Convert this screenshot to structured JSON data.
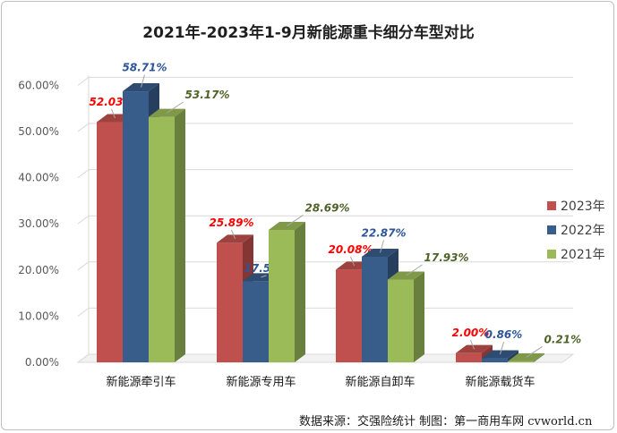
{
  "chart_data": {
    "type": "bar",
    "title": "2021年-2023年1-9月新能源重卡细分车型对比",
    "categories": [
      "新能源牵引车",
      "新能源专用车",
      "新能源自卸车",
      "新能源载货车"
    ],
    "series": [
      {
        "name": "2023年",
        "values": [
          52.03,
          25.89,
          20.08,
          2.0
        ],
        "labels": [
          "52.03%",
          "25.89%",
          "20.08%",
          "2.00%"
        ],
        "color": "#c0504d",
        "label_color": "#ff0000"
      },
      {
        "name": "2022年",
        "values": [
          58.71,
          17.56,
          22.87,
          0.86
        ],
        "labels": [
          "58.71%",
          "17.56%",
          "22.87%",
          "0.86%"
        ],
        "color": "#385d8a",
        "label_color": "#2e5597"
      },
      {
        "name": "2021年",
        "values": [
          53.17,
          28.69,
          17.93,
          0.21
        ],
        "labels": [
          "53.17%",
          "28.69%",
          "17.93%",
          "0.21%"
        ],
        "color": "#9bbb59",
        "label_color": "#4f6228"
      }
    ],
    "y_ticks": [
      "0.00%",
      "10.00%",
      "20.00%",
      "30.00%",
      "40.00%",
      "50.00%",
      "60.00%"
    ],
    "ylim": [
      0,
      60
    ],
    "grid": true,
    "style": "3d-clustered-column",
    "legend_position": "right"
  },
  "source_note": "数据来源：交强险统计  制图：第一商用车网 cvworld.cn"
}
